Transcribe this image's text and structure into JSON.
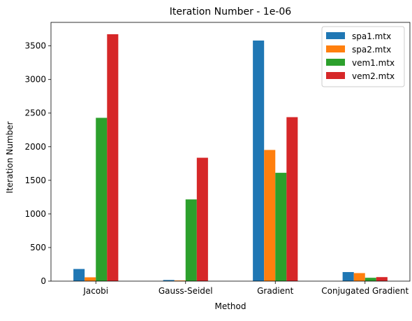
{
  "chart_data": {
    "type": "bar",
    "title": "Iteration Number - 1e-06",
    "xlabel": "Method",
    "ylabel": "Iteration Number",
    "categories": [
      "Jacobi",
      "Gauss-Seidel",
      "Gradient",
      "Conjugated Gradient"
    ],
    "ylim": [
      0,
      3850
    ],
    "yticks": [
      0,
      500,
      1000,
      1500,
      2000,
      2500,
      3000,
      3500
    ],
    "grid": false,
    "legend_position": "top-right",
    "series": [
      {
        "name": "spa1.mtx",
        "color": "#1f77b4",
        "values": [
          181,
          17,
          3580,
          135
        ]
      },
      {
        "name": "spa2.mtx",
        "color": "#ff7f0e",
        "values": [
          57,
          10,
          1952,
          120
        ]
      },
      {
        "name": "vem1.mtx",
        "color": "#2ca02c",
        "values": [
          2430,
          1216,
          1612,
          50
        ]
      },
      {
        "name": "vem2.mtx",
        "color": "#d62728",
        "values": [
          3674,
          1836,
          2440,
          60
        ]
      }
    ]
  }
}
